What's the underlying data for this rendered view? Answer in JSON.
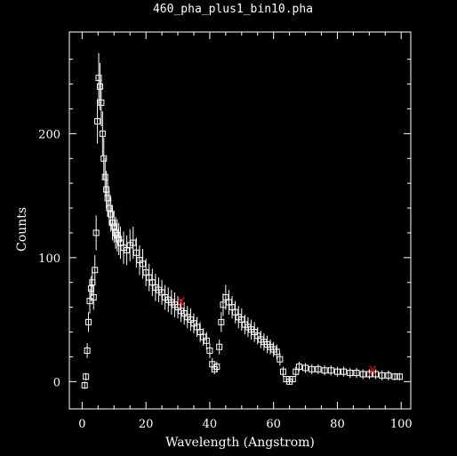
{
  "window": {
    "title": "460_pha_plus1_bin10.pha"
  },
  "chart_data": {
    "type": "scatter",
    "title": "460_pha_plus1_bin10.pha",
    "xlabel": "Wavelength (Angstrom)",
    "ylabel": "Counts",
    "xlim": [
      -4,
      103
    ],
    "ylim": [
      -22,
      282
    ],
    "x_ticks": [
      0,
      20,
      40,
      60,
      80,
      100
    ],
    "y_ticks": [
      0,
      100,
      200
    ],
    "grid": false,
    "legend": "none",
    "colors": {
      "background": "#000000",
      "foreground": "#ffffff",
      "marker": "#ff0000"
    },
    "series": [
      {
        "marker": "open-square-with-error-bars",
        "x": [
          0.8,
          1.2,
          1.6,
          2.0,
          2.4,
          2.8,
          3.2,
          3.6,
          4.0,
          4.4,
          4.8,
          5.2,
          5.6,
          6.0,
          6.4,
          6.8,
          7.2,
          7.6,
          8.0,
          8.5,
          9.0,
          9.5,
          10.0,
          10.5,
          11.0,
          11.5,
          12.0,
          13.0,
          14.0,
          15.0,
          16.0,
          17.0,
          18.0,
          19.0,
          20.0,
          21.0,
          22.0,
          23.0,
          24.0,
          25.0,
          26.0,
          27.0,
          28.0,
          29.0,
          30.0,
          31.0,
          32.0,
          33.0,
          34.0,
          35.0,
          36.0,
          37.0,
          38.0,
          39.0,
          40.0,
          40.8,
          41.5,
          42.2,
          43.0,
          43.6,
          44.2,
          45.0,
          46.0,
          47.0,
          48.0,
          49.0,
          50.0,
          51.0,
          52.0,
          53.0,
          54.0,
          55.0,
          56.0,
          57.0,
          58.0,
          59.0,
          60.0,
          61.0,
          62.0,
          63.0,
          64.0,
          65.0,
          66.0,
          67.0,
          68.0,
          70.0,
          72.0,
          74.0,
          76.0,
          78.0,
          80.0,
          82.0,
          84.0,
          86.0,
          88.0,
          90.0,
          92.0,
          94.0,
          96.0,
          98.0,
          99.5
        ],
        "y": [
          -3,
          4,
          25,
          48,
          65,
          75,
          80,
          68,
          90,
          120,
          210,
          245,
          238,
          225,
          200,
          180,
          165,
          155,
          148,
          140,
          135,
          128,
          125,
          120,
          118,
          115,
          112,
          108,
          106,
          110,
          112,
          104,
          98,
          95,
          88,
          84,
          80,
          76,
          74,
          72,
          68,
          66,
          64,
          62,
          60,
          57,
          55,
          52,
          50,
          47,
          44,
          40,
          36,
          33,
          25,
          14,
          10,
          12,
          28,
          48,
          62,
          68,
          64,
          60,
          56,
          52,
          50,
          46,
          44,
          42,
          40,
          37,
          34,
          32,
          30,
          28,
          26,
          24,
          18,
          8,
          2,
          0,
          2,
          8,
          12,
          11,
          10,
          10,
          9,
          9,
          8,
          8,
          7,
          7,
          6,
          6,
          6,
          5,
          5,
          4,
          4
        ],
        "err": [
          3,
          3,
          6,
          8,
          10,
          10,
          11,
          10,
          12,
          14,
          18,
          20,
          19,
          19,
          18,
          17,
          16,
          15,
          15,
          14,
          14,
          14,
          13,
          13,
          13,
          13,
          13,
          13,
          12,
          13,
          13,
          12,
          12,
          12,
          11,
          11,
          11,
          11,
          10,
          10,
          10,
          10,
          10,
          10,
          9,
          9,
          9,
          9,
          9,
          8,
          8,
          8,
          7,
          7,
          6,
          5,
          4,
          4,
          6,
          8,
          9,
          10,
          10,
          9,
          9,
          9,
          9,
          8,
          8,
          8,
          8,
          7,
          7,
          7,
          7,
          6,
          6,
          6,
          5,
          4,
          2,
          2,
          2,
          4,
          4,
          4,
          4,
          4,
          4,
          4,
          4,
          4,
          4,
          4,
          4,
          4,
          4,
          4,
          4,
          3,
          3
        ]
      },
      {
        "marker": "red-x",
        "x": [
          31,
          91
        ],
        "y": [
          64,
          9
        ]
      }
    ]
  }
}
